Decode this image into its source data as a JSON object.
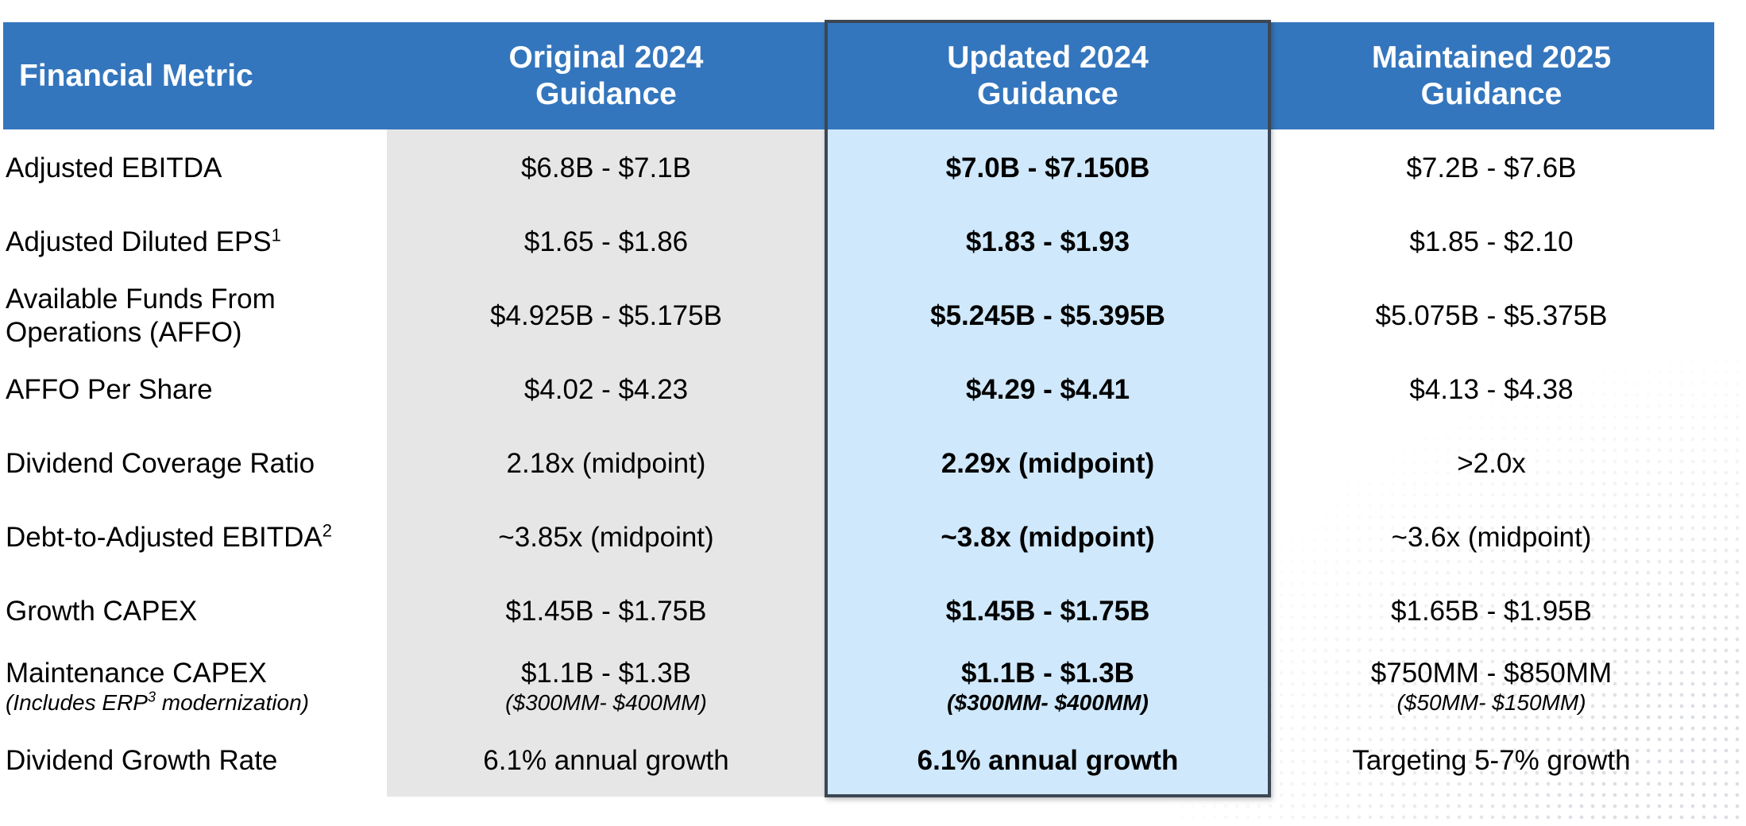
{
  "headers": {
    "metric": "Financial Metric",
    "original": [
      "Original 2024",
      "Guidance"
    ],
    "updated": [
      "Updated 2024",
      "Guidance"
    ],
    "maintained": [
      "Maintained 2025",
      "Guidance"
    ]
  },
  "rows": [
    {
      "metric": "Adjusted EBITDA",
      "original": "$6.8B - $7.1B",
      "updated": "$7.0B - $7.150B",
      "maintained": "$7.2B - $7.6B"
    },
    {
      "metric": "Adjusted Diluted EPS",
      "metric_sup": "1",
      "original": "$1.65 - $1.86",
      "updated": "$1.83 - $1.93",
      "maintained": "$1.85 - $2.10"
    },
    {
      "metric": "Available Funds From",
      "metric_line2": "Operations (AFFO)",
      "original": "$4.925B - $5.175B",
      "updated": "$5.245B - $5.395B",
      "maintained": "$5.075B - $5.375B"
    },
    {
      "metric": "AFFO Per Share",
      "original": "$4.02 - $4.23",
      "updated": "$4.29 - $4.41",
      "maintained": "$4.13 - $4.38"
    },
    {
      "metric": "Dividend Coverage Ratio",
      "original": "2.18x (midpoint)",
      "updated": "2.29x (midpoint)",
      "maintained": ">2.0x"
    },
    {
      "metric": "Debt-to-Adjusted EBITDA",
      "metric_sup": "2",
      "original": "~3.85x (midpoint)",
      "updated": "~3.8x (midpoint)",
      "maintained": "~3.6x (midpoint)"
    },
    {
      "metric": "Growth CAPEX",
      "original": "$1.45B - $1.75B",
      "updated": "$1.45B - $1.75B",
      "maintained": "$1.65B - $1.95B"
    },
    {
      "metric": "Maintenance CAPEX",
      "metric_sub_pre": "(Includes ERP",
      "metric_sub_sup": "3",
      "metric_sub_post": " modernization)",
      "original": "$1.1B - $1.3B",
      "original_sub": "($300MM- $400MM)",
      "updated": "$1.1B - $1.3B",
      "updated_sub": "($300MM- $400MM)",
      "maintained": "$750MM - $850MM",
      "maintained_sub": "($50MM- $150MM)"
    },
    {
      "metric": "Dividend Growth Rate",
      "original": "6.1% annual growth",
      "updated": "6.1% annual growth",
      "maintained": "Targeting 5-7% growth"
    }
  ]
}
